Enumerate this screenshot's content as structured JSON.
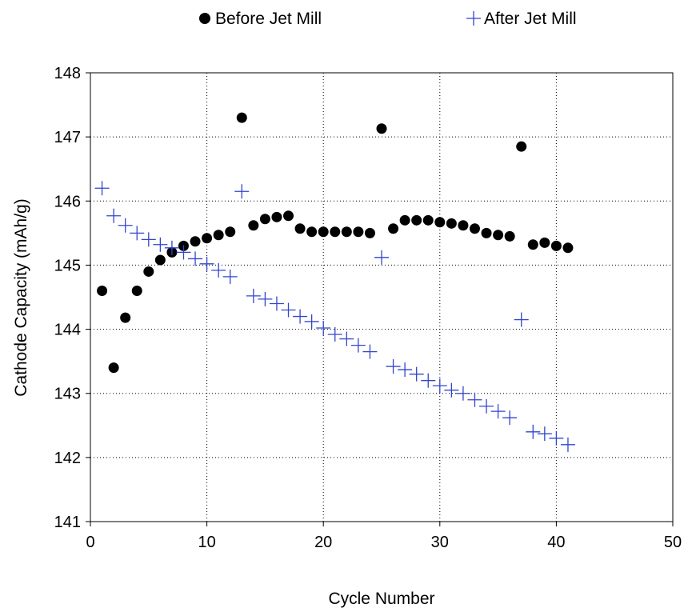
{
  "chart_data": {
    "type": "scatter",
    "xlabel": "Cycle Number",
    "ylabel": "Cathode Capacity (mAh/g)",
    "xlim": [
      0,
      50
    ],
    "ylim": [
      141,
      148
    ],
    "x_ticks": [
      0,
      10,
      20,
      30,
      40,
      50
    ],
    "y_ticks": [
      141,
      142,
      143,
      144,
      145,
      146,
      147,
      148
    ],
    "grid": "dotted",
    "legend_position": "top",
    "series": [
      {
        "name": "Before Jet Mill",
        "marker": "filled-circle",
        "color": "#000000",
        "x": [
          1,
          2,
          3,
          4,
          5,
          6,
          7,
          8,
          9,
          10,
          11,
          12,
          13,
          14,
          15,
          16,
          17,
          18,
          19,
          20,
          21,
          22,
          23,
          24,
          25,
          26,
          27,
          28,
          29,
          30,
          31,
          32,
          33,
          34,
          35,
          36,
          37,
          38,
          39,
          40,
          41
        ],
        "y": [
          144.6,
          143.4,
          144.18,
          144.6,
          144.9,
          145.08,
          145.2,
          145.3,
          145.37,
          145.42,
          145.47,
          145.52,
          147.3,
          145.62,
          145.72,
          145.75,
          145.77,
          145.57,
          145.52,
          145.52,
          145.52,
          145.52,
          145.52,
          145.5,
          147.13,
          145.57,
          145.7,
          145.7,
          145.7,
          145.67,
          145.65,
          145.62,
          145.57,
          145.5,
          145.47,
          145.45,
          146.85,
          145.32,
          145.35,
          145.3,
          145.27
        ]
      },
      {
        "name": "After Jet Mill",
        "marker": "plus",
        "color": "#3344cc",
        "x": [
          1,
          2,
          3,
          4,
          5,
          6,
          7,
          8,
          9,
          10,
          11,
          12,
          13,
          14,
          15,
          16,
          17,
          18,
          19,
          20,
          21,
          22,
          23,
          24,
          25,
          26,
          27,
          28,
          29,
          30,
          31,
          32,
          33,
          34,
          35,
          36,
          37,
          38,
          39,
          40,
          41
        ],
        "y": [
          146.2,
          145.77,
          145.62,
          145.5,
          145.4,
          145.32,
          145.27,
          145.2,
          145.1,
          145.02,
          144.92,
          144.82,
          146.15,
          144.52,
          144.47,
          144.4,
          144.3,
          144.2,
          144.12,
          144.02,
          143.92,
          143.85,
          143.75,
          143.65,
          145.12,
          143.42,
          143.37,
          143.3,
          143.2,
          143.12,
          143.05,
          143.0,
          142.9,
          142.8,
          142.72,
          142.62,
          144.15,
          142.4,
          142.37,
          142.3,
          142.2
        ]
      }
    ]
  }
}
